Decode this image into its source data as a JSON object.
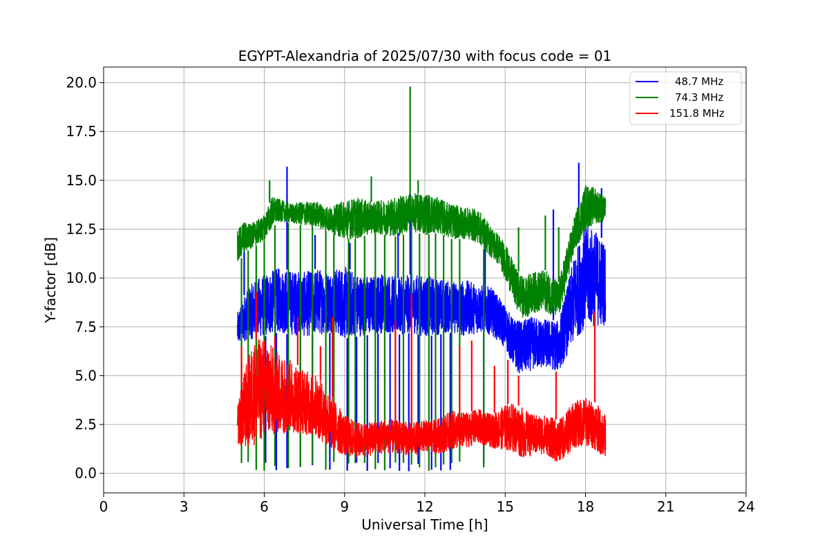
{
  "chart_data": {
    "type": "line",
    "title": "EGYPT-Alexandria of 2025/07/30 with focus code = 01",
    "xlabel": "Universal Time [h]",
    "ylabel": "Y-factor [dB]",
    "xlim": [
      0,
      24
    ],
    "ylim": [
      -1.0,
      20.8
    ],
    "xticks": [
      0,
      3,
      6,
      9,
      12,
      15,
      18,
      21,
      24
    ],
    "xtick_labels": [
      "0",
      "3",
      "6",
      "9",
      "12",
      "15",
      "18",
      "21",
      "24"
    ],
    "yticks": [
      0,
      2.5,
      5,
      7.5,
      10,
      12.5,
      15,
      17.5,
      20
    ],
    "ytick_labels": [
      "0.0",
      "2.5",
      "5.0",
      "7.5",
      "10.0",
      "12.5",
      "15.0",
      "17.5",
      "20.0"
    ],
    "grid": true,
    "legend_position": "top-right",
    "colors": {
      "series_1": "#0000ff",
      "series_2": "#008000",
      "series_3": "#ff0000",
      "grid": "#b0b0b0"
    },
    "series": [
      {
        "name": "48.7 MHz",
        "color": "#0000ff",
        "x": [
          5.0,
          5.3,
          5.6,
          6.0,
          6.5,
          7.0,
          7.5,
          8.0,
          8.5,
          9.0,
          9.5,
          10.0,
          10.5,
          11.0,
          11.5,
          12.0,
          12.5,
          13.0,
          13.5,
          14.0,
          14.5,
          15.0,
          15.3,
          15.6,
          16.0,
          16.5,
          17.0,
          17.3,
          17.6,
          18.0,
          18.4,
          18.75
        ],
        "low": [
          6.5,
          6.8,
          6.9,
          7.0,
          7.2,
          7.1,
          7.0,
          7.1,
          7.2,
          6.9,
          7.0,
          7.1,
          7.2,
          7.1,
          7.2,
          7.0,
          7.1,
          7.2,
          7.0,
          7.2,
          7.1,
          6.4,
          5.5,
          5.0,
          5.3,
          5.4,
          5.2,
          6.0,
          6.8,
          7.5,
          7.5,
          7.6
        ],
        "high": [
          8.2,
          9.3,
          9.8,
          10.2,
          10.5,
          10.4,
          10.3,
          10.5,
          10.4,
          10.6,
          10.2,
          10.1,
          10.3,
          10.0,
          10.2,
          10.1,
          10.0,
          9.8,
          9.9,
          9.7,
          9.5,
          8.6,
          7.9,
          7.8,
          8.0,
          7.9,
          7.8,
          9.5,
          11.2,
          12.8,
          12.4,
          11.8
        ],
        "spikes": [
          [
            5.25,
            11.5
          ],
          [
            6.85,
            15.7
          ],
          [
            7.9,
            12.2
          ],
          [
            9.2,
            11.8
          ],
          [
            11.0,
            12.3
          ],
          [
            11.45,
            14.3
          ],
          [
            14.25,
            11.5
          ],
          [
            16.8,
            13.5
          ],
          [
            17.75,
            15.9
          ],
          [
            18.6,
            14.6
          ]
        ],
        "dips": [
          6.05,
          6.45,
          6.85,
          7.35,
          7.8,
          8.45,
          9.1,
          9.45,
          9.85,
          10.25,
          10.7,
          11.05,
          11.4,
          11.75,
          12.25,
          12.6,
          12.95,
          14.2
        ]
      },
      {
        "name": "74.3 MHz",
        "color": "#008000",
        "x": [
          5.0,
          5.2,
          5.5,
          6.0,
          6.3,
          6.6,
          7.0,
          7.5,
          8.0,
          8.5,
          9.0,
          9.5,
          10.0,
          10.5,
          11.0,
          11.5,
          12.0,
          12.5,
          13.0,
          13.5,
          14.0,
          14.5,
          14.8,
          15.1,
          15.4,
          15.7,
          16.0,
          16.5,
          17.0,
          17.3,
          17.6,
          18.0,
          18.4,
          18.75
        ],
        "low": [
          10.5,
          11.2,
          11.5,
          11.9,
          12.6,
          12.9,
          12.8,
          12.7,
          12.6,
          12.3,
          12.0,
          12.0,
          12.3,
          12.2,
          12.1,
          12.4,
          12.2,
          12.3,
          12.0,
          12.0,
          11.8,
          11.0,
          10.6,
          9.6,
          8.5,
          7.9,
          8.2,
          8.3,
          7.9,
          9.6,
          11.4,
          12.5,
          12.8,
          12.9
        ],
        "high": [
          12.4,
          12.9,
          12.8,
          13.2,
          14.2,
          14.0,
          13.8,
          13.9,
          13.9,
          13.6,
          14.0,
          14.1,
          13.9,
          14.0,
          14.2,
          14.3,
          14.4,
          14.1,
          13.8,
          13.6,
          13.5,
          12.6,
          12.2,
          11.5,
          10.5,
          10.0,
          10.3,
          10.4,
          9.8,
          11.6,
          13.2,
          14.8,
          14.6,
          14.1
        ],
        "spikes": [
          [
            6.2,
            15.0
          ],
          [
            10.0,
            15.2
          ],
          [
            11.45,
            19.8
          ],
          [
            11.75,
            15.0
          ],
          [
            15.5,
            12.6
          ],
          [
            16.5,
            13.2
          ],
          [
            17.0,
            12.6
          ]
        ],
        "dips": [
          5.15,
          5.4,
          5.7,
          6.0,
          6.4,
          6.9,
          7.35,
          7.8,
          8.3,
          8.6,
          9.15,
          9.4,
          9.75,
          10.15,
          10.5,
          10.9,
          11.2,
          11.5,
          11.8,
          12.15,
          12.4,
          12.7,
          13.0,
          13.3,
          14.2
        ]
      },
      {
        "name": "151.8 MHz",
        "color": "#ff0000",
        "x": [
          5.0,
          5.3,
          5.6,
          6.0,
          6.5,
          7.0,
          7.5,
          8.0,
          8.5,
          9.0,
          9.5,
          10.0,
          10.5,
          11.0,
          11.5,
          12.0,
          12.5,
          13.0,
          13.5,
          14.0,
          14.5,
          15.0,
          15.3,
          15.6,
          16.0,
          16.5,
          17.0,
          17.3,
          17.6,
          18.0,
          18.4,
          18.75
        ],
        "low": [
          1.5,
          1.2,
          1.4,
          1.8,
          2.0,
          2.1,
          2.0,
          1.8,
          1.2,
          0.9,
          0.8,
          0.9,
          1.0,
          1.0,
          0.9,
          1.1,
          1.0,
          1.2,
          1.3,
          1.5,
          1.3,
          1.2,
          1.1,
          0.8,
          0.9,
          1.0,
          0.5,
          0.9,
          1.3,
          1.4,
          1.2,
          0.7
        ],
        "high": [
          3.5,
          5.5,
          6.8,
          7.0,
          6.2,
          5.8,
          5.3,
          5.0,
          4.0,
          3.0,
          2.6,
          2.6,
          2.8,
          2.7,
          2.6,
          2.7,
          2.8,
          3.2,
          3.1,
          3.3,
          3.0,
          3.5,
          3.6,
          3.4,
          3.0,
          3.0,
          2.7,
          3.2,
          3.7,
          3.9,
          3.6,
          3.0
        ],
        "spikes": [
          [
            5.15,
            6.5
          ],
          [
            5.7,
            9.3
          ],
          [
            6.4,
            7.0
          ],
          [
            7.25,
            8.0
          ],
          [
            8.1,
            6.5
          ],
          [
            8.55,
            8.0
          ],
          [
            10.9,
            7.8
          ],
          [
            11.5,
            9.2
          ],
          [
            13.3,
            6.5
          ],
          [
            13.75,
            6.8
          ],
          [
            14.6,
            5.5
          ],
          [
            15.1,
            5.8
          ],
          [
            15.5,
            5.0
          ],
          [
            16.9,
            5.2
          ],
          [
            18.35,
            8.3
          ]
        ],
        "dips": []
      }
    ]
  }
}
